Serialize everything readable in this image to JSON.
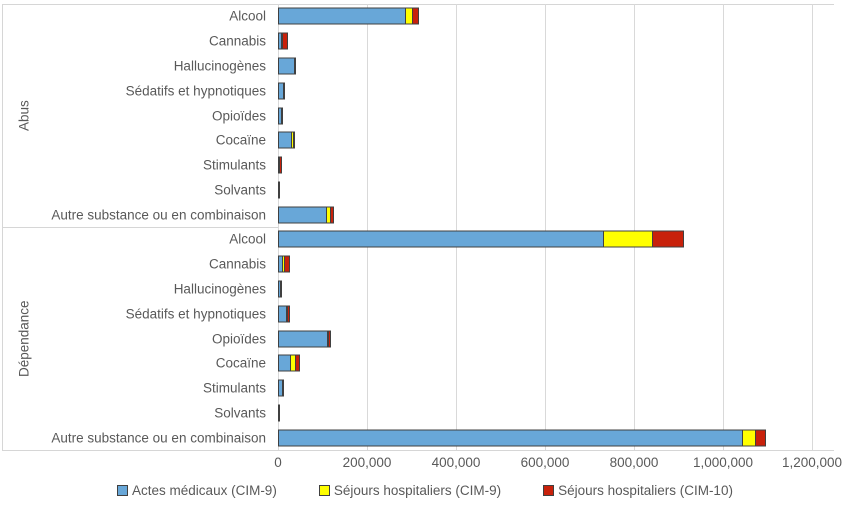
{
  "chart_data": {
    "type": "bar",
    "orientation": "horizontal-stacked",
    "title": "",
    "xlabel": "",
    "ylabel": "",
    "grid": true,
    "legend_position": "bottom",
    "x_axis": {
      "min": 0,
      "max": 1200000,
      "tick_interval": 200000,
      "tick_labels": [
        "0",
        "200,000",
        "400,000",
        "600,000",
        "800,000",
        "1,000,000",
        "1,200,000"
      ]
    },
    "series": [
      {
        "name": "Actes médicaux (CIM-9)",
        "color": "#68a7d8",
        "border": "#404040"
      },
      {
        "name": "Séjours hospitaliers (CIM-9)",
        "color": "#ffff00",
        "border": "#404040"
      },
      {
        "name": "Séjours hospitaliers (CIM-10)",
        "color": "#c8210b",
        "border": "#404040"
      }
    ],
    "groups": [
      {
        "label": "Abus",
        "rows": [
          {
            "label": "Alcool",
            "values": [
              287000,
              19000,
              16000
            ]
          },
          {
            "label": "Cannabis",
            "values": [
              8000,
              2000,
              13000
            ]
          },
          {
            "label": "Hallucinogènes",
            "values": [
              39000,
              0,
              1000
            ]
          },
          {
            "label": "Sédatifs et hypnotiques",
            "values": [
              14000,
              0,
              1500
            ]
          },
          {
            "label": "Opioïdes",
            "values": [
              10000,
              0,
              1500
            ]
          },
          {
            "label": "Cocaïne",
            "values": [
              32000,
              6000,
              3000
            ]
          },
          {
            "label": "Stimulants",
            "values": [
              2000,
              0,
              7000
            ]
          },
          {
            "label": "Solvants",
            "values": [
              1200,
              0,
              0
            ]
          },
          {
            "label": "Autre substance ou en combinaison",
            "values": [
              111000,
              11000,
              9000
            ]
          }
        ]
      },
      {
        "label": "Dépendance",
        "rows": [
          {
            "label": "Alcool",
            "values": [
              732000,
              113000,
              73000
            ]
          },
          {
            "label": "Cannabis",
            "values": [
              12000,
              7000,
              13000
            ]
          },
          {
            "label": "Hallucinogènes",
            "values": [
              6000,
              0,
              1000
            ]
          },
          {
            "label": "Sédatifs et hypnotiques",
            "values": [
              20000,
              2000,
              7000
            ]
          },
          {
            "label": "Opioïdes",
            "values": [
              113000,
              4000,
              7000
            ]
          },
          {
            "label": "Cocaïne",
            "values": [
              29000,
              14000,
              11000
            ]
          },
          {
            "label": "Stimulants",
            "values": [
              11000,
              0,
              3500
            ]
          },
          {
            "label": "Solvants",
            "values": [
              1200,
              0,
              0
            ]
          },
          {
            "label": "Autre substance ou en combinaison",
            "values": [
              1045000,
              32000,
              25000
            ]
          }
        ]
      }
    ]
  }
}
